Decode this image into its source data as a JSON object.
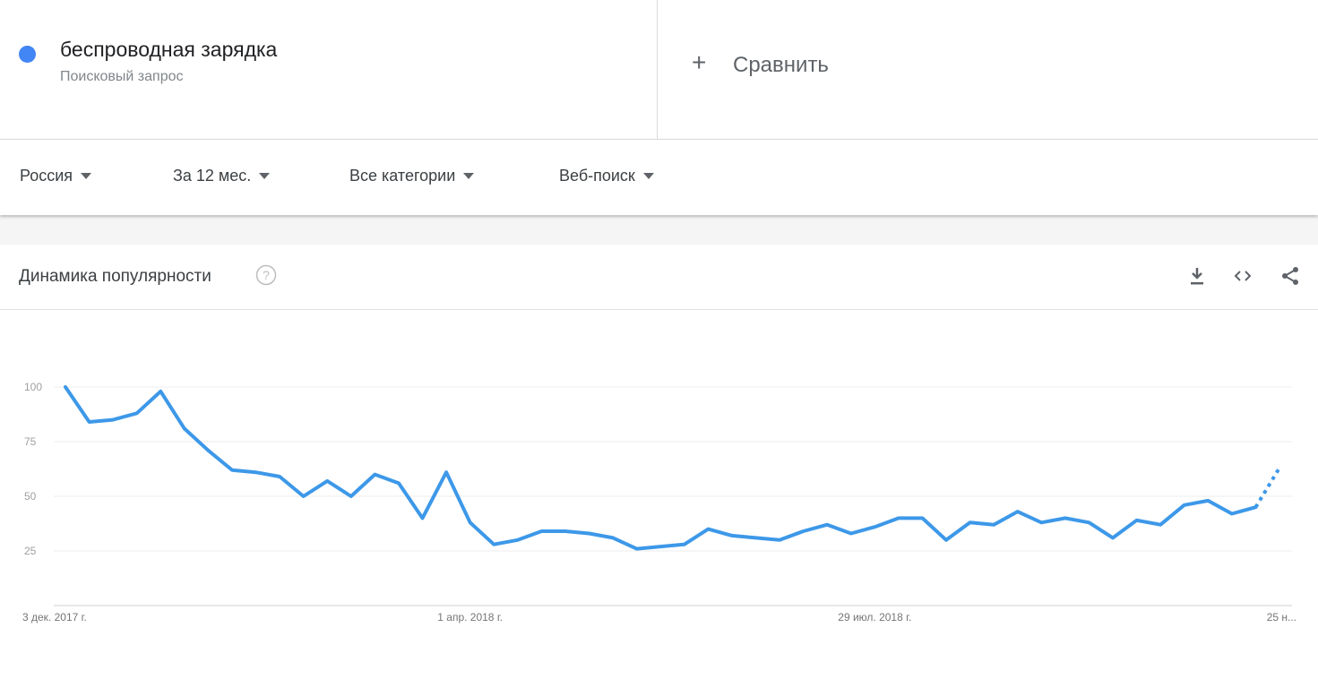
{
  "term": {
    "name": "беспроводная зарядка",
    "type": "Поисковый запрос",
    "color": "#4285f4"
  },
  "compare": {
    "icon": "plus-icon",
    "label": "Сравнить"
  },
  "filters": [
    {
      "label": "Россия"
    },
    {
      "label": "За 12 мес."
    },
    {
      "label": "Все категории"
    },
    {
      "label": "Веб-поиск"
    }
  ],
  "card": {
    "title": "Динамика популярности",
    "icons": [
      "help-icon",
      "download-icon",
      "embed-icon",
      "share-icon"
    ]
  },
  "chart_data": {
    "type": "line",
    "line_color": "#3d98e8",
    "grid": true,
    "yticks": [
      100,
      75,
      50,
      25
    ],
    "ylim": [
      0,
      100
    ],
    "xtick_labels": [
      "3 дек. 2017 г.",
      "1 апр. 2018 г.",
      "29 июл. 2018 г.",
      "25 н..."
    ],
    "xtick_index": [
      0,
      17,
      34,
      51
    ],
    "series": [
      {
        "values": [
          100,
          84,
          85,
          88,
          98,
          81,
          71,
          62,
          61,
          59,
          50,
          57,
          50,
          60,
          56,
          40,
          61,
          38,
          28,
          30,
          34,
          34,
          33,
          31,
          26,
          27,
          28,
          35,
          32,
          31,
          30,
          34,
          37,
          33,
          36,
          40,
          40,
          30,
          38,
          37,
          43,
          38,
          40,
          38,
          31,
          39,
          37,
          46,
          48,
          42,
          45,
          63
        ],
        "partial_last": true
      }
    ]
  }
}
